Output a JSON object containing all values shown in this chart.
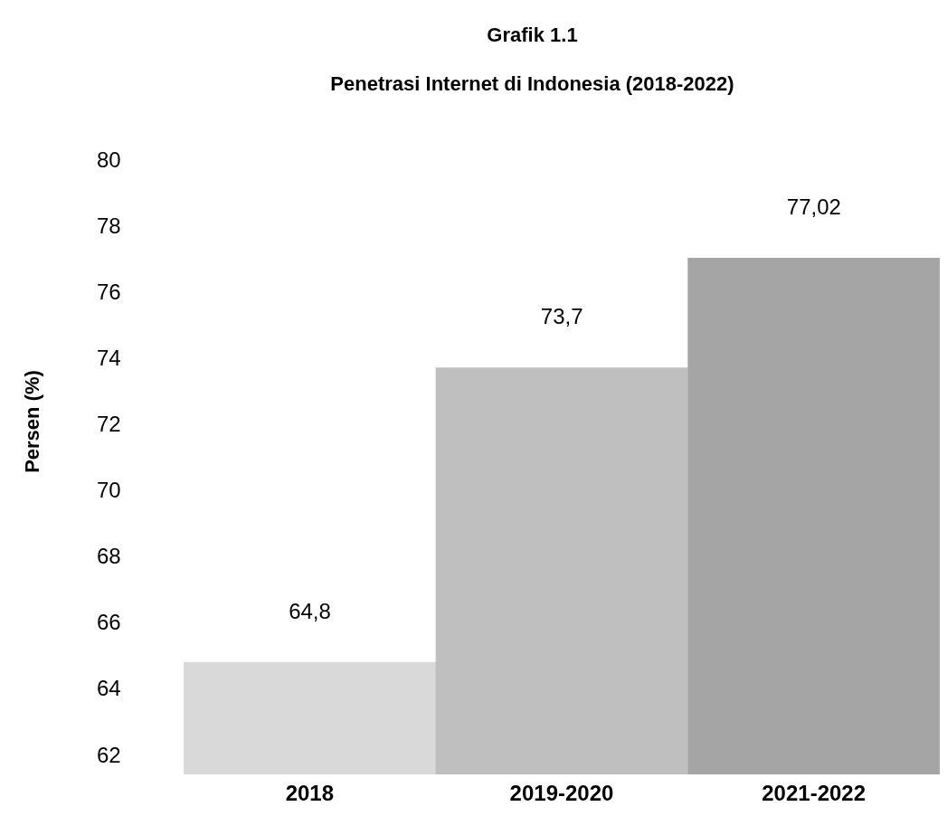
{
  "chart_data": {
    "type": "bar",
    "title": "Grafik 1.1",
    "subtitle": "Penetrasi Internet di Indonesia (2018-2022)",
    "ylabel": "Persen (%)",
    "categories": [
      "2018",
      "2019-2020",
      "2021-2022"
    ],
    "values": [
      64.8,
      73.7,
      77.02
    ],
    "colors": [
      "#d9d9d9",
      "#bfbfbf",
      "#a5a5a5"
    ],
    "value_labels": [
      "64,8",
      "73,7",
      "77,02"
    ],
    "ylim": [
      61.4,
      80
    ],
    "yticks": [
      62,
      64,
      66,
      68,
      70,
      72,
      74,
      76,
      78,
      80
    ],
    "grid": false,
    "legend": false
  }
}
